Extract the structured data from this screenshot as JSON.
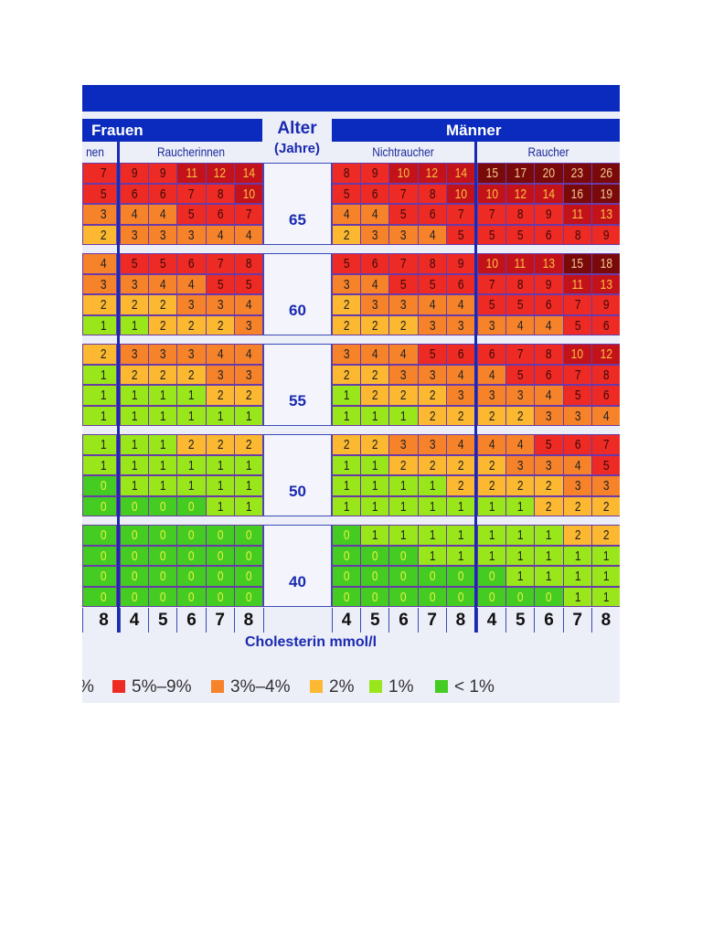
{
  "headers": {
    "women": "Frauen",
    "men": "Männer",
    "women_nonsmoker_partial": "nen",
    "women_smoker": "Raucherinnen",
    "men_nonsmoker": "Nichtraucher",
    "men_smoker": "Raucher",
    "age_title": "Alter",
    "age_unit": "(Jahre)"
  },
  "colors": {
    "header_blue": "#0a2bbd",
    "lt1": "#44cc22",
    "1": "#99e61a",
    "2": "#fbb830",
    "3-4": "#f6822a",
    "5-9": "#ee2a24",
    "10-14": "#c4121a",
    "15+": "#7a0a0a"
  },
  "legend": {
    "partial": "%",
    "items": [
      "5%–9%",
      "3%–4%",
      "2%",
      "1%",
      "< 1%"
    ],
    "colors": [
      "#ee2a24",
      "#f6822a",
      "#fbb830",
      "#99e61a",
      "#44cc22"
    ]
  },
  "chart_data": {
    "type": "heatmap",
    "xlabel": "Cholesterin mmol/l",
    "x_ticks": [
      "4",
      "5",
      "6",
      "7",
      "8"
    ],
    "partial_tick": "8",
    "ages": [
      "65",
      "60",
      "55",
      "50",
      "40"
    ],
    "women_nonsmoker_col8": [
      [
        7,
        5,
        3,
        2
      ],
      [
        4,
        3,
        2,
        1
      ],
      [
        2,
        1,
        1,
        1
      ],
      [
        1,
        1,
        0,
        0
      ],
      [
        0,
        0,
        0,
        0
      ]
    ],
    "women_smoker": [
      [
        [
          9,
          9,
          11,
          12,
          14
        ],
        [
          6,
          6,
          7,
          8,
          10
        ],
        [
          4,
          4,
          5,
          6,
          7
        ],
        [
          3,
          3,
          3,
          4,
          4
        ]
      ],
      [
        [
          5,
          5,
          6,
          7,
          8
        ],
        [
          3,
          4,
          4,
          5,
          5
        ],
        [
          2,
          2,
          3,
          3,
          4
        ],
        [
          1,
          2,
          2,
          2,
          3
        ]
      ],
      [
        [
          3,
          3,
          3,
          4,
          4
        ],
        [
          2,
          2,
          2,
          3,
          3
        ],
        [
          1,
          1,
          1,
          2,
          2
        ],
        [
          1,
          1,
          1,
          1,
          1
        ]
      ],
      [
        [
          1,
          1,
          2,
          2,
          2
        ],
        [
          1,
          1,
          1,
          1,
          1
        ],
        [
          1,
          1,
          1,
          1,
          1
        ],
        [
          0,
          0,
          0,
          1,
          1
        ]
      ],
      [
        [
          0,
          0,
          0,
          0,
          0
        ],
        [
          0,
          0,
          0,
          0,
          0
        ],
        [
          0,
          0,
          0,
          0,
          0
        ],
        [
          0,
          0,
          0,
          0,
          0
        ]
      ]
    ],
    "men_nonsmoker": [
      [
        [
          8,
          9,
          10,
          12,
          14
        ],
        [
          5,
          6,
          7,
          8,
          10
        ],
        [
          4,
          4,
          5,
          6,
          7
        ],
        [
          2,
          3,
          3,
          4,
          5
        ]
      ],
      [
        [
          5,
          6,
          7,
          8,
          9
        ],
        [
          3,
          4,
          5,
          5,
          6
        ],
        [
          2,
          3,
          3,
          4,
          4
        ],
        [
          2,
          2,
          2,
          3,
          3
        ]
      ],
      [
        [
          3,
          4,
          4,
          5,
          6
        ],
        [
          2,
          2,
          3,
          3,
          4
        ],
        [
          1,
          2,
          2,
          2,
          3
        ],
        [
          1,
          1,
          1,
          2,
          2
        ]
      ],
      [
        [
          2,
          2,
          3,
          3,
          4
        ],
        [
          1,
          1,
          2,
          2,
          2
        ],
        [
          1,
          1,
          1,
          1,
          2
        ],
        [
          1,
          1,
          1,
          1,
          1
        ]
      ],
      [
        [
          0,
          1,
          1,
          1,
          1
        ],
        [
          0,
          0,
          0,
          1,
          1
        ],
        [
          0,
          0,
          0,
          0,
          0
        ],
        [
          0,
          0,
          0,
          0,
          0
        ]
      ]
    ],
    "men_smoker": [
      [
        [
          15,
          17,
          20,
          23,
          26
        ],
        [
          10,
          12,
          14,
          16,
          19
        ],
        [
          7,
          8,
          9,
          11,
          13
        ],
        [
          5,
          5,
          6,
          8,
          9
        ]
      ],
      [
        [
          10,
          11,
          13,
          15,
          18
        ],
        [
          7,
          8,
          9,
          11,
          13
        ],
        [
          5,
          5,
          6,
          7,
          9
        ],
        [
          3,
          4,
          4,
          5,
          6
        ]
      ],
      [
        [
          6,
          7,
          8,
          10,
          12
        ],
        [
          4,
          5,
          6,
          7,
          8
        ],
        [
          3,
          3,
          4,
          5,
          6
        ],
        [
          2,
          2,
          3,
          3,
          4
        ]
      ],
      [
        [
          4,
          4,
          5,
          6,
          7
        ],
        [
          2,
          3,
          3,
          4,
          5
        ],
        [
          2,
          2,
          2,
          3,
          3
        ],
        [
          1,
          1,
          2,
          2,
          2
        ]
      ],
      [
        [
          1,
          1,
          1,
          2,
          2
        ],
        [
          1,
          1,
          1,
          1,
          1
        ],
        [
          0,
          1,
          1,
          1,
          1
        ],
        [
          0,
          0,
          0,
          1,
          1
        ]
      ]
    ]
  }
}
